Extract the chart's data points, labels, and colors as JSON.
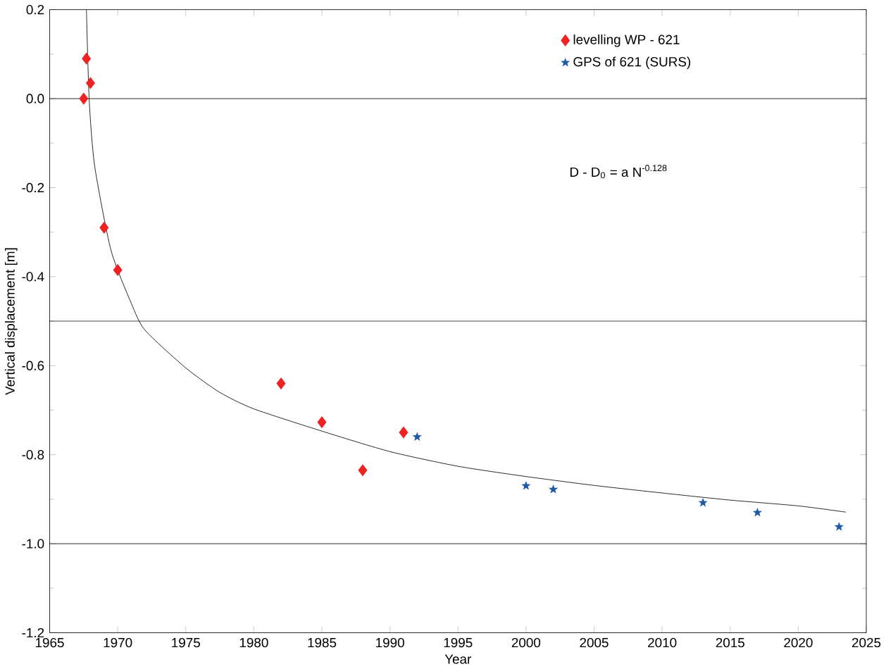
{
  "chart_data": {
    "type": "scatter",
    "xlabel": "Year",
    "ylabel": "Vertical displacement [m]",
    "xlim": [
      1965,
      2025
    ],
    "ylim": [
      -1.2,
      0.2
    ],
    "xticks": [
      1965,
      1970,
      1975,
      1980,
      1985,
      1990,
      1995,
      2000,
      2005,
      2010,
      2015,
      2020,
      2025
    ],
    "yticks": [
      {
        "value": 0.2,
        "label": "0.2"
      },
      {
        "value": 0.0,
        "label": "0.0"
      },
      {
        "value": -0.2,
        "label": "-0.2"
      },
      {
        "value": -0.4,
        "label": "-0.4"
      },
      {
        "value": -0.6,
        "label": "-0.6"
      },
      {
        "value": -0.8,
        "label": "-0.8"
      },
      {
        "value": -1.0,
        "label": "-1.0"
      },
      {
        "value": -1.2,
        "label": "-1.2"
      }
    ],
    "legend": "top right",
    "grid": false,
    "series": [
      {
        "name": "levelling WP - 621",
        "color": "#ee2222",
        "marker": "diamond",
        "x": [
          1967.7,
          1968,
          1967.5,
          1969,
          1970,
          1982,
          1985,
          1988,
          1991
        ],
        "values": [
          0.09,
          0.035,
          0.0,
          -0.29,
          -0.385,
          -0.64,
          -0.727,
          -0.835,
          -0.75
        ]
      },
      {
        "name": "GPS of 621 (SURS)",
        "color": "#1f5aa8",
        "marker": "star",
        "x": [
          1992,
          2000,
          2002,
          2013,
          2017,
          2023
        ],
        "values": [
          -0.76,
          -0.87,
          -0.878,
          -0.908,
          -0.93,
          -0.962
        ]
      },
      {
        "type": "line",
        "color": "#000000",
        "marker": "none",
        "x": [
          1967.7,
          1967.9,
          1968.3,
          1969.5,
          1971,
          1972,
          1975,
          1977.5,
          1980,
          1985,
          1990,
          1995,
          2000,
          2005,
          2010,
          2015,
          2020,
          2023.5
        ],
        "values": [
          0.2,
          0.0,
          -0.15,
          -0.34,
          -0.46,
          -0.52,
          -0.605,
          -0.66,
          -0.697,
          -0.747,
          -0.793,
          -0.826,
          -0.849,
          -0.869,
          -0.886,
          -0.902,
          -0.915,
          -0.929
        ]
      }
    ],
    "ref_lines": [
      {
        "axis": "y",
        "value": 0.0,
        "color": "#000000"
      },
      {
        "axis": "y",
        "value": -0.5,
        "color": "#000000"
      },
      {
        "axis": "y",
        "value": -1.0,
        "color": "#000000"
      }
    ],
    "annotations": [
      "D - D$_{0}$ = a N$^{-0.128}$"
    ]
  }
}
